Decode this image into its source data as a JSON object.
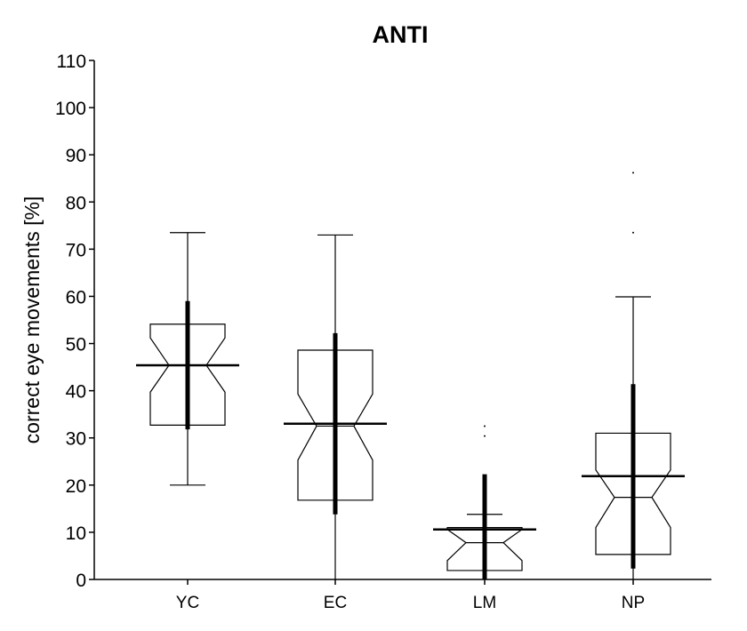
{
  "chart_data": {
    "type": "boxplot",
    "title": "ANTI",
    "xlabel": "",
    "ylabel": "correct eye movements [%]",
    "ylim": [
      0,
      110
    ],
    "yticks": [
      0,
      10,
      20,
      30,
      40,
      50,
      60,
      70,
      80,
      90,
      100,
      110
    ],
    "categories": [
      "YC",
      "EC",
      "LM",
      "NP"
    ],
    "grid": false,
    "series": [
      {
        "name": "YC",
        "whisker_low": 20.0,
        "q1": 32.7,
        "notch_low": 39.7,
        "median": 45.4,
        "notch_high": 51.2,
        "q3": 54.1,
        "whisker_high": 73.5,
        "mean": 45.4,
        "sd_low": 31.8,
        "sd_high": 59.0,
        "outliers": []
      },
      {
        "name": "EC",
        "whisker_low": 0.0,
        "q1": 16.8,
        "notch_low": 25.3,
        "median": 32.5,
        "notch_high": 39.3,
        "q3": 48.6,
        "whisker_high": 73.0,
        "mean": 33.0,
        "sd_low": 13.8,
        "sd_high": 52.2,
        "outliers": []
      },
      {
        "name": "LM",
        "whisker_low": 0.0,
        "q1": 1.9,
        "notch_low": 4.0,
        "median": 7.8,
        "notch_high": 10.6,
        "q3": 11.0,
        "whisker_high": 13.8,
        "mean": 10.6,
        "sd_low": 0.0,
        "sd_high": 22.3,
        "outliers": [
          30.4,
          32.5
        ]
      },
      {
        "name": "NP",
        "whisker_low": 0.0,
        "q1": 5.3,
        "notch_low": 11.0,
        "median": 17.4,
        "notch_high": 23.2,
        "q3": 31.0,
        "whisker_high": 59.9,
        "mean": 21.9,
        "sd_low": 2.3,
        "sd_high": 41.4,
        "outliers": [
          73.5,
          86.2
        ]
      }
    ]
  }
}
